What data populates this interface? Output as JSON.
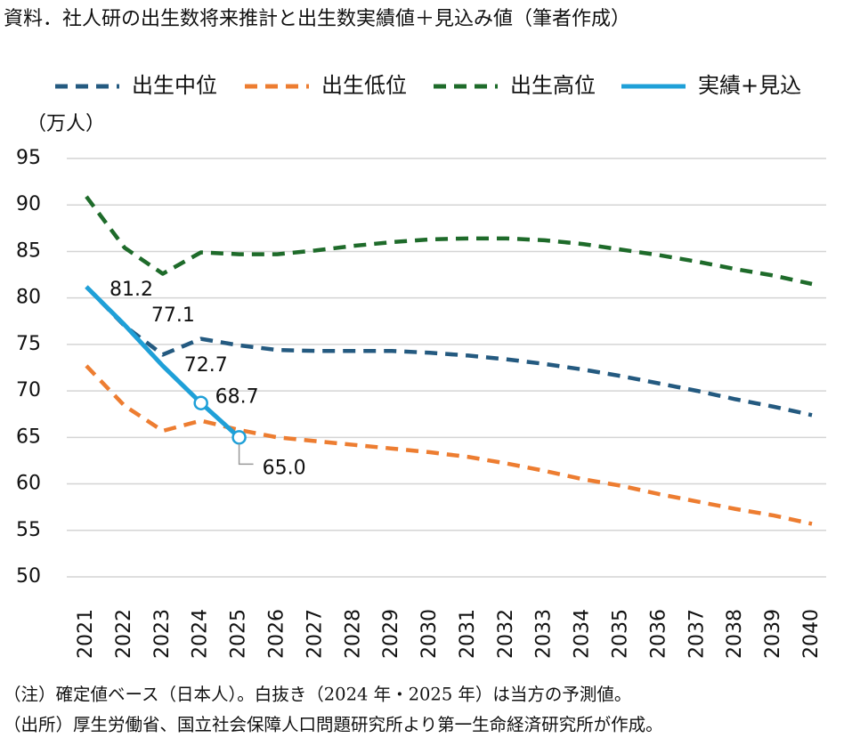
{
  "chart_data": {
    "type": "line",
    "title": "資料．社人研の出生数将来推計と出生数実績値＋見込み値（筆者作成）",
    "y_label": "（万人）",
    "categories": [
      "2021",
      "2022",
      "2023",
      "2024",
      "2025",
      "2026",
      "2027",
      "2028",
      "2029",
      "2030",
      "2031",
      "2032",
      "2033",
      "2034",
      "2035",
      "2036",
      "2037",
      "2038",
      "2039",
      "2040"
    ],
    "series": [
      {
        "name": "出生中位",
        "color": "#245a80",
        "dashed": true,
        "values": [
          81.2,
          77.0,
          73.9,
          75.6,
          74.9,
          74.4,
          74.3,
          74.3,
          74.3,
          74.1,
          73.8,
          73.4,
          72.9,
          72.3,
          71.6,
          70.8,
          70.0,
          69.1,
          68.3,
          67.4
        ]
      },
      {
        "name": "出生低位",
        "color": "#ed7d31",
        "dashed": true,
        "values": [
          72.7,
          68.4,
          65.7,
          66.8,
          65.8,
          65.0,
          64.6,
          64.2,
          63.8,
          63.4,
          62.9,
          62.2,
          61.4,
          60.5,
          59.8,
          58.9,
          58.1,
          57.3,
          56.6,
          55.7
        ]
      },
      {
        "name": "出生高位",
        "color": "#1e6b2a",
        "dashed": true,
        "values": [
          90.9,
          85.4,
          82.6,
          84.9,
          84.7,
          84.7,
          85.1,
          85.6,
          86.0,
          86.3,
          86.4,
          86.4,
          86.2,
          85.8,
          85.2,
          84.6,
          83.9,
          83.1,
          82.4,
          81.5
        ]
      },
      {
        "name": "実績+見込",
        "color": "#1fa0d8",
        "dashed": false,
        "values": [
          81.2,
          77.1,
          72.7,
          68.7,
          65.0,
          null,
          null,
          null,
          null,
          null,
          null,
          null,
          null,
          null,
          null,
          null,
          null,
          null,
          null,
          null
        ],
        "value_labels": [
          "81.2",
          "77.1",
          "72.7",
          "68.7",
          "65.0",
          null,
          null,
          null,
          null,
          null,
          null,
          null,
          null,
          null,
          null,
          null,
          null,
          null,
          null,
          null
        ],
        "hollow_markers": [
          3,
          4
        ]
      }
    ],
    "ylim": [
      50,
      95
    ],
    "yticks": [
      50,
      55,
      60,
      65,
      70,
      75,
      80,
      85,
      90,
      95
    ],
    "grid": true,
    "notes": [
      "（注）確定値ベース（日本人）。白抜き（2024 年・2025 年）は当方の予測値。",
      "（出所）厚生労働省、国立社会保障人口問題研究所より第一生命経済研究所が作成。"
    ]
  }
}
